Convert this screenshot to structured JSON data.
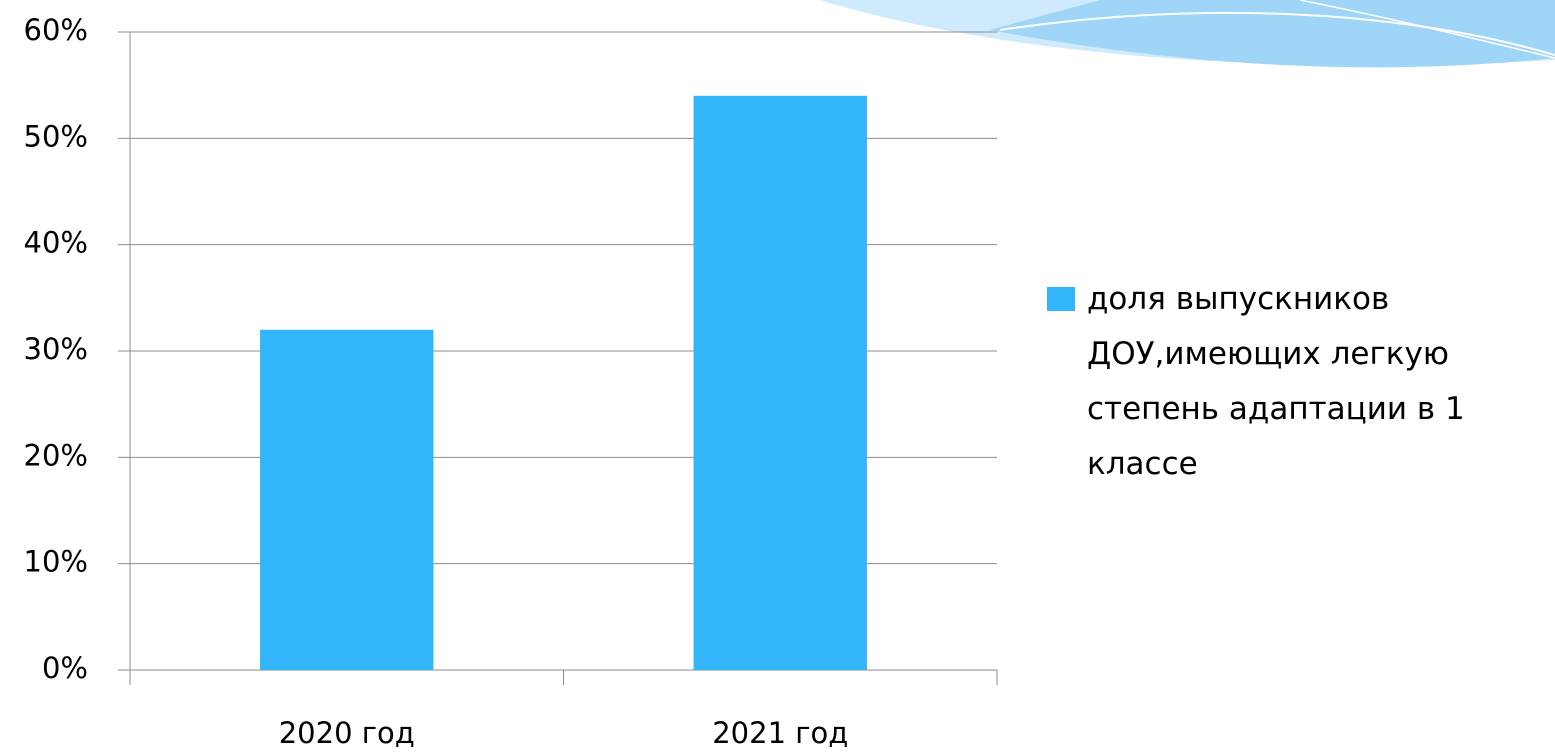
{
  "chart_data": {
    "type": "bar",
    "categories": [
      "2020 год",
      "2021 год"
    ],
    "series": [
      {
        "name": "доля выпускников ДОУ,имеющих легкую степень адаптации в 1 классе",
        "color": "#33b5fc",
        "values": [
          32,
          54
        ]
      }
    ],
    "ylim": [
      0,
      60
    ],
    "yticks": [
      {
        "value": 0,
        "label": "0%"
      },
      {
        "value": 10,
        "label": "10%"
      },
      {
        "value": 20,
        "label": "20%"
      },
      {
        "value": 30,
        "label": "30%"
      },
      {
        "value": 40,
        "label": "40%"
      },
      {
        "value": 50,
        "label": "50%"
      },
      {
        "value": 60,
        "label": "60%"
      }
    ],
    "grid": true,
    "legend": "right"
  }
}
